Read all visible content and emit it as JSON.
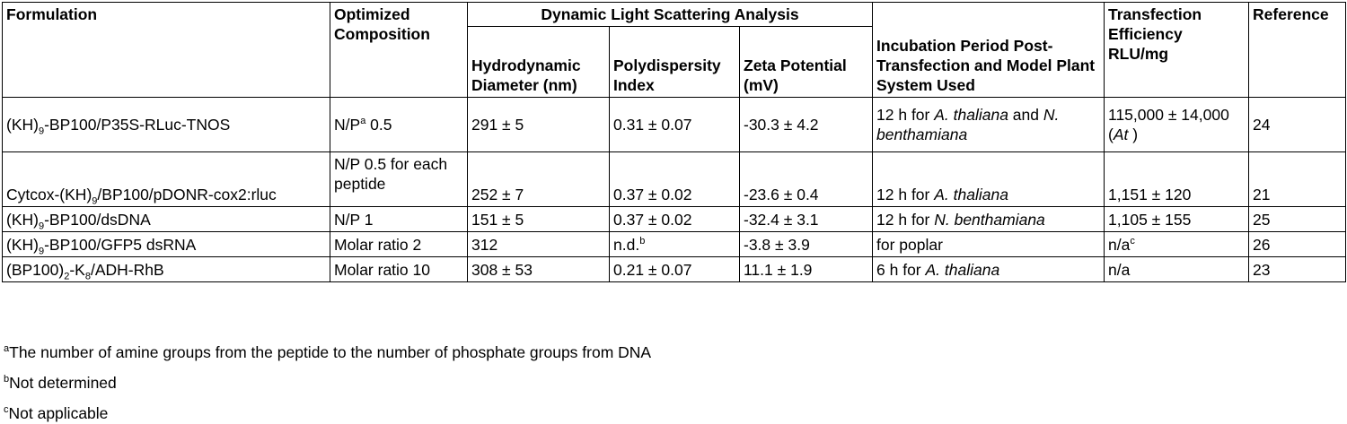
{
  "headers": {
    "formulation": "Formulation",
    "composition": "Optimized Composition",
    "dls": "Dynamic Light Scattering Analysis",
    "diameter": "Hydrodynamic Diameter (nm)",
    "pdi": "Polydispersity Index",
    "zeta": "Zeta Potential (mV)",
    "incubation": "Incubation Period Post-Transfection and Model Plant System Used",
    "efficiency": "Transfection Efficiency RLU/mg",
    "reference": "Reference"
  },
  "rows": [
    {
      "f_pre": "(KH)",
      "f_sub": "9",
      "f_post": "-BP100/P35S-RLuc-TNOS",
      "c_pre": "N/P",
      "c_sup": "a",
      "c_post": " 0.5",
      "diameter": "291 ± 5",
      "pdi": "0.31 ± 0.07",
      "pdi_sup": "",
      "zeta": "-30.3 ± 4.2",
      "inc_a": "12 h for ",
      "inc_b": "A. thaliana",
      "inc_c": "  and ",
      "inc_d": "N. benthamiana",
      "eff_a": "115,000 ± 14,000 (",
      "eff_b": "At",
      "eff_c": " )",
      "eff_sup": "",
      "ref": "24"
    },
    {
      "f_pre": "Cytcox-(KH)",
      "f_sub": "9",
      "f_post": "/BP100/pDONR-cox2:rluc",
      "c_pre": "N/P 0.5 for each peptide",
      "c_sup": "",
      "c_post": "",
      "diameter": "252 ± 7",
      "pdi": "0.37 ± 0.02",
      "pdi_sup": "",
      "zeta": "-23.6 ± 0.4",
      "inc_a": "12 h for ",
      "inc_b": "A. thaliana",
      "inc_c": "",
      "inc_d": "",
      "eff_a": "1,151 ± 120",
      "eff_b": "",
      "eff_c": "",
      "eff_sup": "",
      "ref": "21"
    },
    {
      "f_pre": "(KH)",
      "f_sub": "9",
      "f_post": "-BP100/dsDNA",
      "c_pre": "N/P 1",
      "c_sup": "",
      "c_post": "",
      "diameter": "151 ± 5",
      "pdi": "0.37 ± 0.02",
      "pdi_sup": "",
      "zeta": "-32.4 ± 3.1",
      "inc_a": "12 h for ",
      "inc_b": "N. benthamiana",
      "inc_c": "",
      "inc_d": "",
      "eff_a": "1,105 ± 155",
      "eff_b": "",
      "eff_c": "",
      "eff_sup": "",
      "ref": "25"
    },
    {
      "f_pre": "(KH)",
      "f_sub": "9",
      "f_post": "-BP100/GFP5 dsRNA",
      "c_pre": "Molar ratio 2",
      "c_sup": "",
      "c_post": "",
      "diameter": "312",
      "pdi": "n.d.",
      "pdi_sup": "b",
      "zeta": "-3.8 ± 3.9",
      "inc_a": "for poplar",
      "inc_b": "",
      "inc_c": "",
      "inc_d": "",
      "eff_a": "n/a",
      "eff_b": "",
      "eff_c": "",
      "eff_sup": "c",
      "ref": "26"
    },
    {
      "f_pre": "(BP100)",
      "f_sub": "2",
      "f_post": "-K",
      "f_sub2": "8",
      "f_post2": "/ADH-RhB",
      "c_pre": "Molar ratio 10",
      "c_sup": "",
      "c_post": "",
      "diameter": "308 ± 53",
      "pdi": "0.21 ± 0.07",
      "pdi_sup": "",
      "zeta": "11.1 ± 1.9",
      "inc_a": "6 h for ",
      "inc_b": "A. thaliana",
      "inc_c": "",
      "inc_d": "",
      "eff_a": "n/a",
      "eff_b": "",
      "eff_c": "",
      "eff_sup": "",
      "ref": "23"
    }
  ],
  "footnotes": [
    {
      "mark": "a",
      "text": "The number of amine groups from the peptide to the number of phosphate groups from DNA"
    },
    {
      "mark": "b",
      "text": "Not determined"
    },
    {
      "mark": "c",
      "text": "Not applicable"
    }
  ]
}
